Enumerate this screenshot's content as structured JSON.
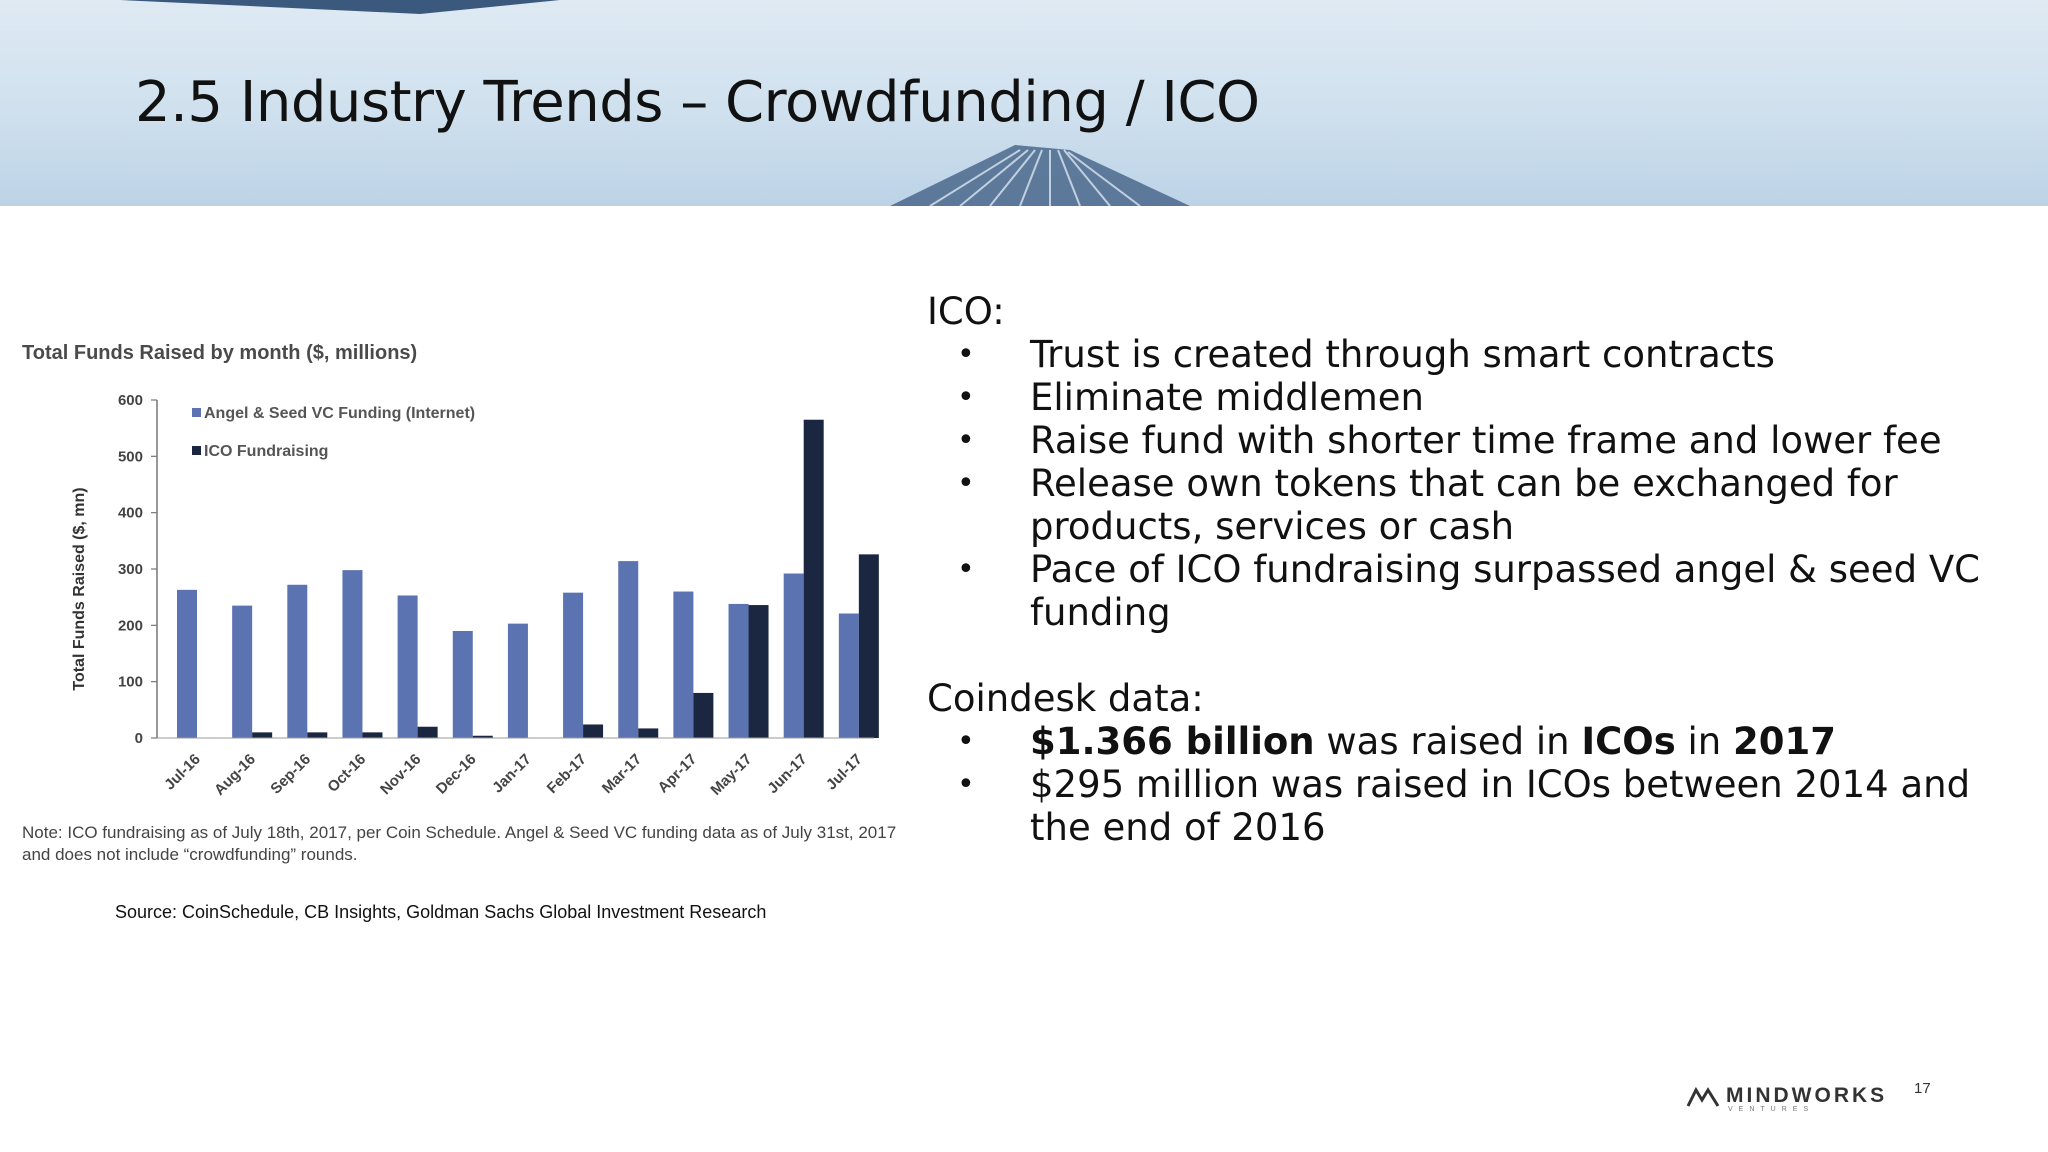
{
  "slide": {
    "title": "2.5 Industry Trends – Crowdfunding / ICO",
    "source": "Source: CoinSchedule, CB Insights, Goldman Sachs Global Investment Research",
    "page_number": "17",
    "logo_text": "MINDWORKS",
    "logo_subtext": "VENTURES"
  },
  "ico_section": {
    "label": "ICO:",
    "bullets": [
      "Trust is created through smart contracts",
      "Eliminate middlemen",
      "Raise fund with shorter time frame and lower fee",
      "Release own tokens that can be exchanged for products, services or cash",
      "Pace of ICO fundraising surpassed angel & seed VC funding"
    ]
  },
  "coindesk_section": {
    "label": "Coindesk data:",
    "bullet1": {
      "amount": "$1.366 billion",
      "text1": " was raised in ",
      "icos": "ICOs",
      "text2": " in ",
      "year": "2017"
    },
    "bullet2": "$295 million was raised in ICOs between 2014 and the end of 2016"
  },
  "chart_data": {
    "type": "bar",
    "title": "Total Funds Raised by month ($, millions)",
    "ylabel": "Total Funds Raised ($, mn)",
    "xlabel": "",
    "ylim": [
      0,
      600
    ],
    "yticks": [
      0,
      100,
      200,
      300,
      400,
      500,
      600
    ],
    "categories": [
      "Jul-16",
      "Aug-16",
      "Sep-16",
      "Oct-16",
      "Nov-16",
      "Dec-16",
      "Jan-17",
      "Feb-17",
      "Mar-17",
      "Apr-17",
      "May-17",
      "Jun-17",
      "Jul-17"
    ],
    "series": [
      {
        "name": "Angel & Seed VC Funding (Internet)",
        "color": "#5b73b0",
        "values": [
          263,
          235,
          272,
          298,
          253,
          190,
          203,
          258,
          314,
          260,
          238,
          292,
          221
        ]
      },
      {
        "name": "ICO Fundraising",
        "color": "#1b2740",
        "values": [
          0,
          10,
          10,
          10,
          20,
          4,
          0,
          24,
          17,
          80,
          236,
          565,
          326
        ]
      }
    ],
    "legend_position": "top-left",
    "grid": false,
    "note": "Note: ICO fundraising as of July 18th, 2017, per Coin Schedule. Angel & Seed VC funding data as of July 31st, 2017 and does not include “crowdfunding” rounds."
  }
}
